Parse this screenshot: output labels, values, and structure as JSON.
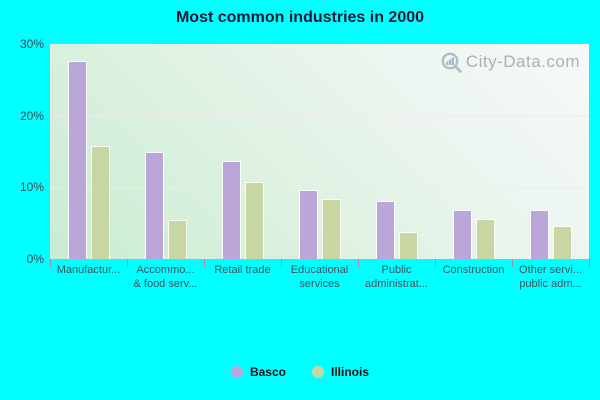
{
  "chart": {
    "watermark": "City-Data.com",
    "background_color": "#00ffff",
    "plot_gradient": [
      "#f6f9fa",
      "#e9f4ec",
      "#c9ecd2"
    ],
    "gridline_color": "#f3e6f3",
    "title_color": "#1a1a33",
    "y_label_color": "#40474f",
    "x_label_color": "#3d5360"
  },
  "chart_data": {
    "type": "bar",
    "title": "Most common industries in 2000",
    "xlabel": "",
    "ylabel": "",
    "ylim": [
      0,
      30
    ],
    "grid": true,
    "legend_position": "bottom",
    "y_ticks": [
      {
        "label": "30%",
        "value": 30
      },
      {
        "label": "20%",
        "value": 20
      },
      {
        "label": "10%",
        "value": 10
      },
      {
        "label": "0%",
        "value": 0
      }
    ],
    "categories": [
      {
        "label_lines": [
          "Manufactur..."
        ]
      },
      {
        "label_lines": [
          "Accommo...",
          "& food serv..."
        ]
      },
      {
        "label_lines": [
          "Retail trade"
        ]
      },
      {
        "label_lines": [
          "Educational",
          "services"
        ]
      },
      {
        "label_lines": [
          "Public",
          "administrat..."
        ]
      },
      {
        "label_lines": [
          "Construction"
        ]
      },
      {
        "label_lines": [
          "Other servi...",
          "public adm..."
        ]
      }
    ],
    "series": [
      {
        "name": "Basco",
        "color": "#bba6da",
        "values": [
          27.6,
          15.0,
          13.7,
          9.6,
          8.1,
          6.8,
          6.8
        ]
      },
      {
        "name": "Illinois",
        "color": "#c7d6a3",
        "values": [
          15.8,
          5.4,
          10.8,
          8.4,
          3.8,
          5.6,
          4.6
        ]
      }
    ]
  }
}
